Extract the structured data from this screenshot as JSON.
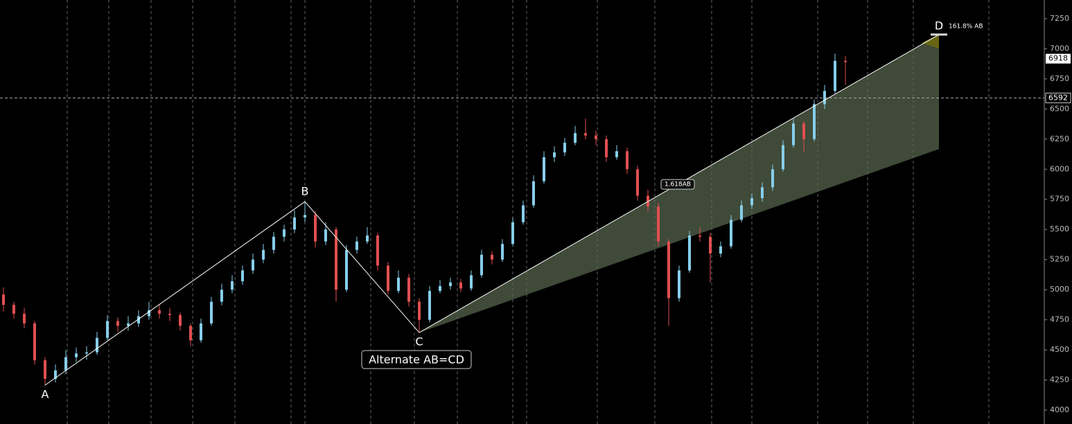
{
  "chart_data": {
    "type": "candlestick",
    "ylim": [
      3885,
      7405
    ],
    "yticks": [
      4000,
      4250,
      4500,
      4750,
      5000,
      5250,
      5500,
      5750,
      6000,
      6250,
      6500,
      6750,
      7000,
      7250
    ],
    "bull_color": "#87ceeb",
    "bear_color": "#e05050",
    "last_price": 6918,
    "cursor_price": 6592,
    "candles": [
      [
        4960,
        5020,
        4820,
        4874
      ],
      [
        4874,
        4900,
        4760,
        4800
      ],
      [
        4800,
        4850,
        4680,
        4720
      ],
      [
        4720,
        4740,
        4380,
        4414
      ],
      [
        4414,
        4440,
        4207,
        4260
      ],
      [
        4260,
        4380,
        4230,
        4330
      ],
      [
        4330,
        4500,
        4300,
        4440
      ],
      [
        4440,
        4520,
        4400,
        4470
      ],
      [
        4470,
        4530,
        4420,
        4480
      ],
      [
        4480,
        4650,
        4460,
        4600
      ],
      [
        4600,
        4790,
        4580,
        4740
      ],
      [
        4740,
        4770,
        4650,
        4700
      ],
      [
        4700,
        4780,
        4660,
        4720
      ],
      [
        4720,
        4830,
        4690,
        4780
      ],
      [
        4780,
        4900,
        4750,
        4830
      ],
      [
        4830,
        4880,
        4760,
        4800
      ],
      [
        4800,
        4850,
        4740,
        4790
      ],
      [
        4790,
        4810,
        4660,
        4700
      ],
      [
        4700,
        4720,
        4530,
        4580
      ],
      [
        4580,
        4760,
        4560,
        4720
      ],
      [
        4720,
        4940,
        4700,
        4900
      ],
      [
        4900,
        5050,
        4870,
        5000
      ],
      [
        5000,
        5120,
        4970,
        5070
      ],
      [
        5070,
        5200,
        5040,
        5160
      ],
      [
        5160,
        5300,
        5130,
        5250
      ],
      [
        5250,
        5380,
        5220,
        5330
      ],
      [
        5330,
        5480,
        5300,
        5440
      ],
      [
        5440,
        5540,
        5400,
        5500
      ],
      [
        5500,
        5660,
        5470,
        5600
      ],
      [
        5600,
        5731,
        5560,
        5620
      ],
      [
        5620,
        5650,
        5350,
        5400
      ],
      [
        5400,
        5560,
        5370,
        5500
      ],
      [
        5500,
        5520,
        4900,
        5000
      ],
      [
        5000,
        5370,
        4980,
        5330
      ],
      [
        5330,
        5440,
        5300,
        5400
      ],
      [
        5400,
        5520,
        5380,
        5450
      ],
      [
        5450,
        5470,
        5160,
        5200
      ],
      [
        5200,
        5230,
        4960,
        4990
      ],
      [
        4990,
        5160,
        4970,
        5100
      ],
      [
        5100,
        5130,
        4860,
        4900
      ],
      [
        4900,
        4930,
        4644,
        4750
      ],
      [
        4750,
        5030,
        4730,
        4990
      ],
      [
        4990,
        5080,
        4970,
        5030
      ],
      [
        5030,
        5100,
        5000,
        5060
      ],
      [
        5060,
        5090,
        4980,
        5010
      ],
      [
        5010,
        5160,
        4990,
        5120
      ],
      [
        5120,
        5330,
        5100,
        5290
      ],
      [
        5290,
        5320,
        5210,
        5250
      ],
      [
        5250,
        5420,
        5230,
        5380
      ],
      [
        5380,
        5600,
        5360,
        5560
      ],
      [
        5560,
        5740,
        5540,
        5700
      ],
      [
        5700,
        5950,
        5680,
        5900
      ],
      [
        5900,
        6150,
        5880,
        6100
      ],
      [
        6100,
        6190,
        6060,
        6140
      ],
      [
        6140,
        6260,
        6110,
        6220
      ],
      [
        6220,
        6360,
        6200,
        6300
      ],
      [
        6300,
        6420,
        6250,
        6280
      ],
      [
        6280,
        6320,
        6200,
        6250
      ],
      [
        6250,
        6280,
        6060,
        6100
      ],
      [
        6100,
        6200,
        6080,
        6150
      ],
      [
        6150,
        6180,
        5960,
        6000
      ],
      [
        6000,
        6030,
        5740,
        5780
      ],
      [
        5780,
        5830,
        5650,
        5690
      ],
      [
        5690,
        5720,
        5360,
        5400
      ],
      [
        5400,
        5420,
        4700,
        4930
      ],
      [
        4930,
        5200,
        4900,
        5160
      ],
      [
        5160,
        5490,
        5140,
        5450
      ],
      [
        5450,
        5520,
        5400,
        5440
      ],
      [
        5440,
        5470,
        5060,
        5300
      ],
      [
        5300,
        5400,
        5270,
        5360
      ],
      [
        5360,
        5620,
        5340,
        5580
      ],
      [
        5580,
        5740,
        5560,
        5700
      ],
      [
        5700,
        5800,
        5670,
        5760
      ],
      [
        5760,
        5890,
        5730,
        5850
      ],
      [
        5850,
        6040,
        5820,
        6000
      ],
      [
        6000,
        6240,
        5980,
        6200
      ],
      [
        6200,
        6420,
        6180,
        6380
      ],
      [
        6380,
        6400,
        6140,
        6250
      ],
      [
        6250,
        6580,
        6230,
        6540
      ],
      [
        6540,
        6700,
        6500,
        6650
      ],
      [
        6650,
        6960,
        6630,
        6900
      ],
      [
        6900,
        6940,
        6700,
        6890
      ]
    ],
    "pattern": [
      {
        "label": "A",
        "x": 4,
        "value": 4207
      },
      {
        "label": "B",
        "x": 29,
        "value": 5731
      },
      {
        "label": "C",
        "x": 40,
        "value": 4644
      },
      {
        "label": "D",
        "x": 90,
        "value": 7118
      }
    ],
    "zone_low": 6168,
    "projection_label": "1.618AB",
    "target_label": "161.8% AB",
    "pattern_name": "Alternate AB=CD"
  }
}
